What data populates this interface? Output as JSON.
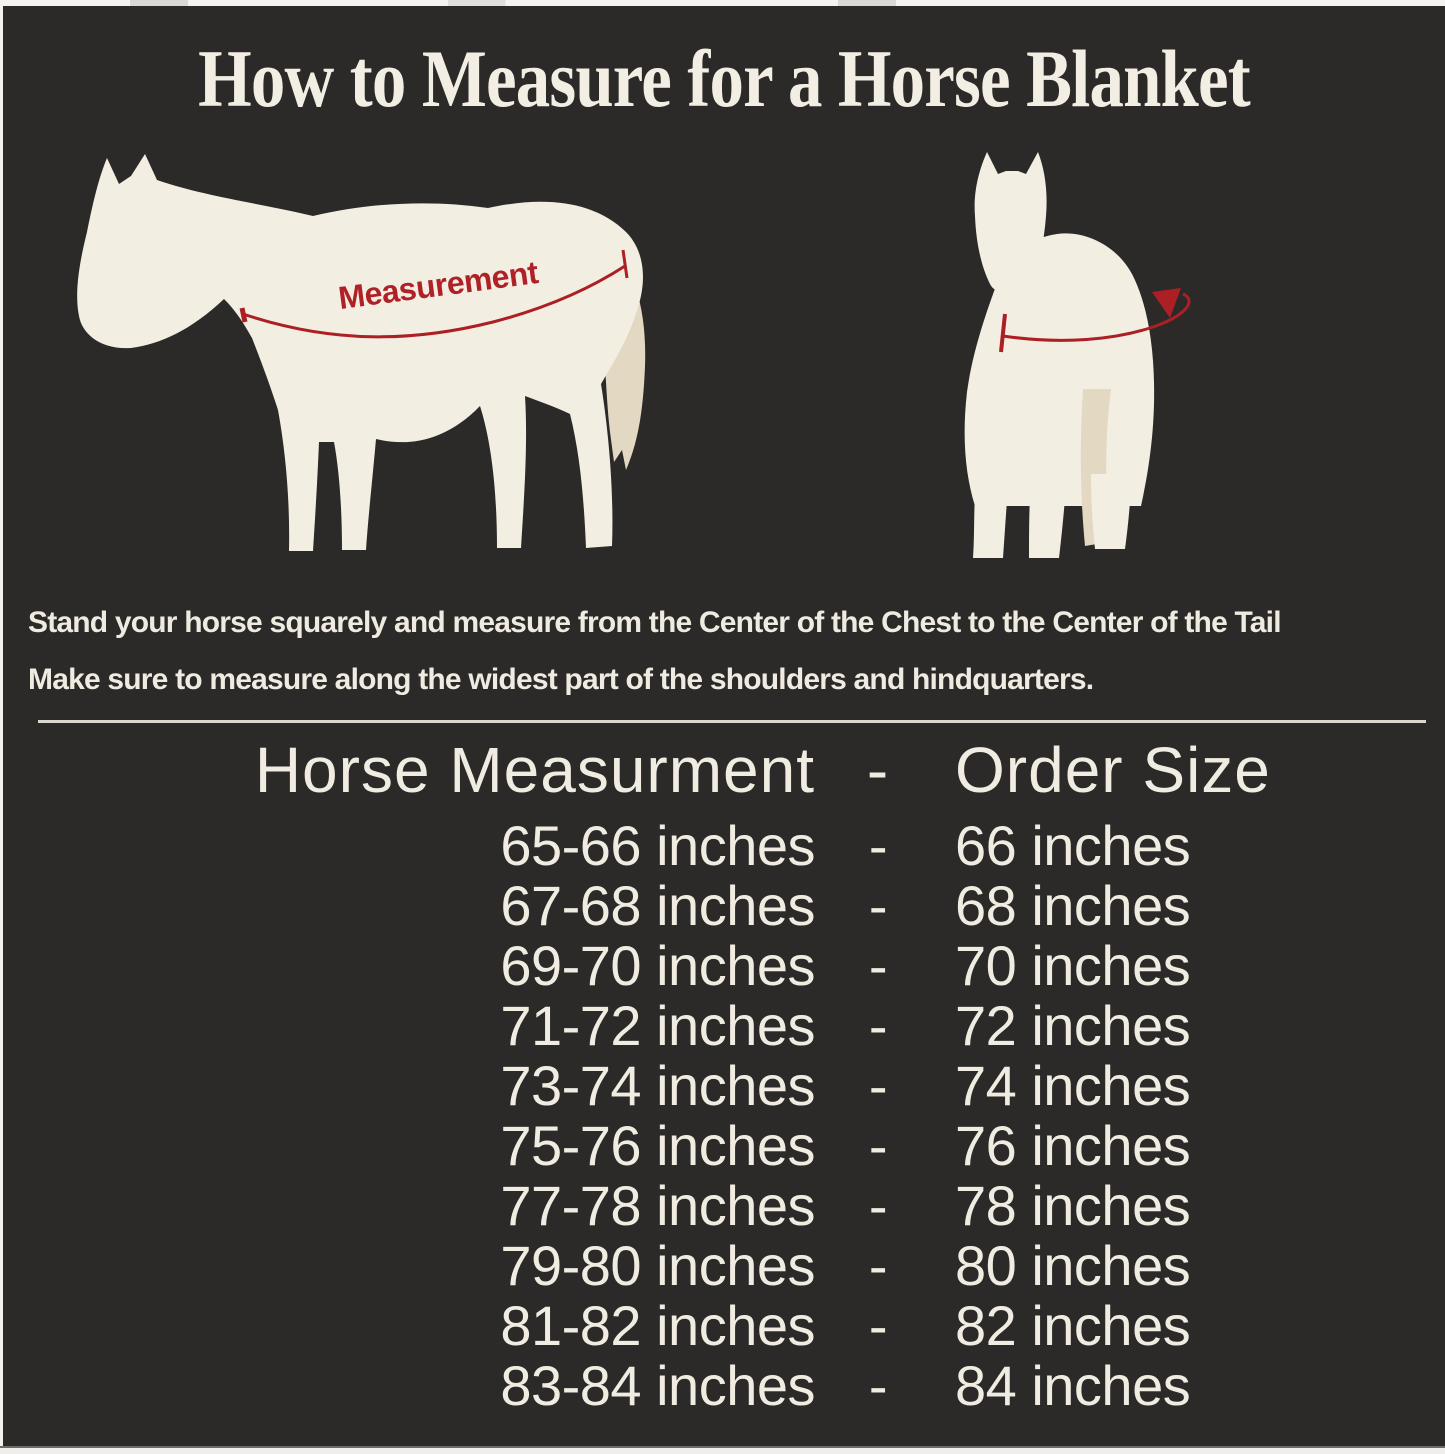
{
  "title": "How to Measure for a Horse Blanket",
  "diagram": {
    "measurement_label": "Measurement",
    "side_horse_icon": "side-view-horse-silhouette",
    "front_horse_icon": "front-view-horse-silhouette"
  },
  "instructions": {
    "line1": "Stand your horse squarely and measure from the Center of the Chest to the Center of the Tail",
    "line2": "Make sure to measure along the widest part of the shoulders and hindquarters."
  },
  "size_table": {
    "header": {
      "measurement": "Horse Measurment",
      "separator": "-",
      "order": "Order Size"
    },
    "rows": [
      {
        "measurement": "65-66 inches",
        "separator": "-",
        "order": "66 inches"
      },
      {
        "measurement": "67-68 inches",
        "separator": "-",
        "order": "68 inches"
      },
      {
        "measurement": "69-70 inches",
        "separator": "-",
        "order": "70 inches"
      },
      {
        "measurement": "71-72 inches",
        "separator": "-",
        "order": "72 inches"
      },
      {
        "measurement": "73-74 inches",
        "separator": "-",
        "order": "74 inches"
      },
      {
        "measurement": "75-76 inches",
        "separator": "-",
        "order": "76 inches"
      },
      {
        "measurement": "77-78 inches",
        "separator": "-",
        "order": "78 inches"
      },
      {
        "measurement": "79-80 inches",
        "separator": "-",
        "order": "80 inches"
      },
      {
        "measurement": "81-82 inches",
        "separator": "-",
        "order": "82 inches"
      },
      {
        "measurement": "83-84 inches",
        "separator": "-",
        "order": "84 inches"
      }
    ]
  },
  "colors": {
    "background": "#2b2a29",
    "cream_text": "#f1ece1",
    "horse_body": "#f3eee2",
    "tail_beige": "#e3d8c2",
    "accent_red": "#ac1f24"
  }
}
